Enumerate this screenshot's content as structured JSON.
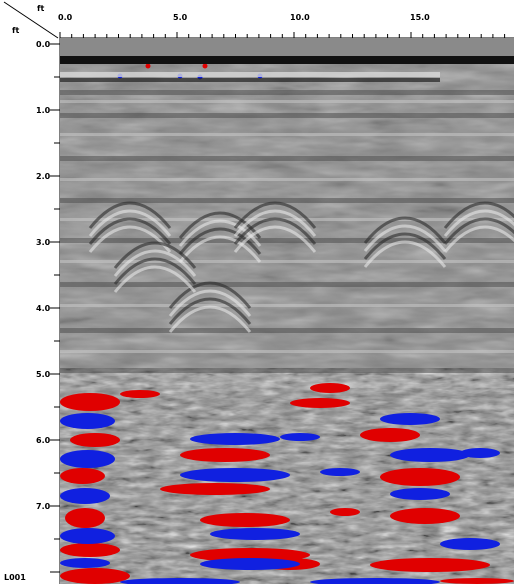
{
  "axes": {
    "x_unit": "ft",
    "y_unit": "ft",
    "x_ticks": [
      "0.0",
      "5.0",
      "10.0",
      "15.0"
    ],
    "y_ticks": [
      "0.0",
      "1.0",
      "2.0",
      "3.0",
      "4.0",
      "5.0",
      "6.0",
      "7.0"
    ]
  },
  "file_label": "L001",
  "colors": {
    "background_gray": "#8a8a8a",
    "reflection_red": "#e00000",
    "reflection_blue": "#1020e0",
    "surface_band": "#101010"
  }
}
